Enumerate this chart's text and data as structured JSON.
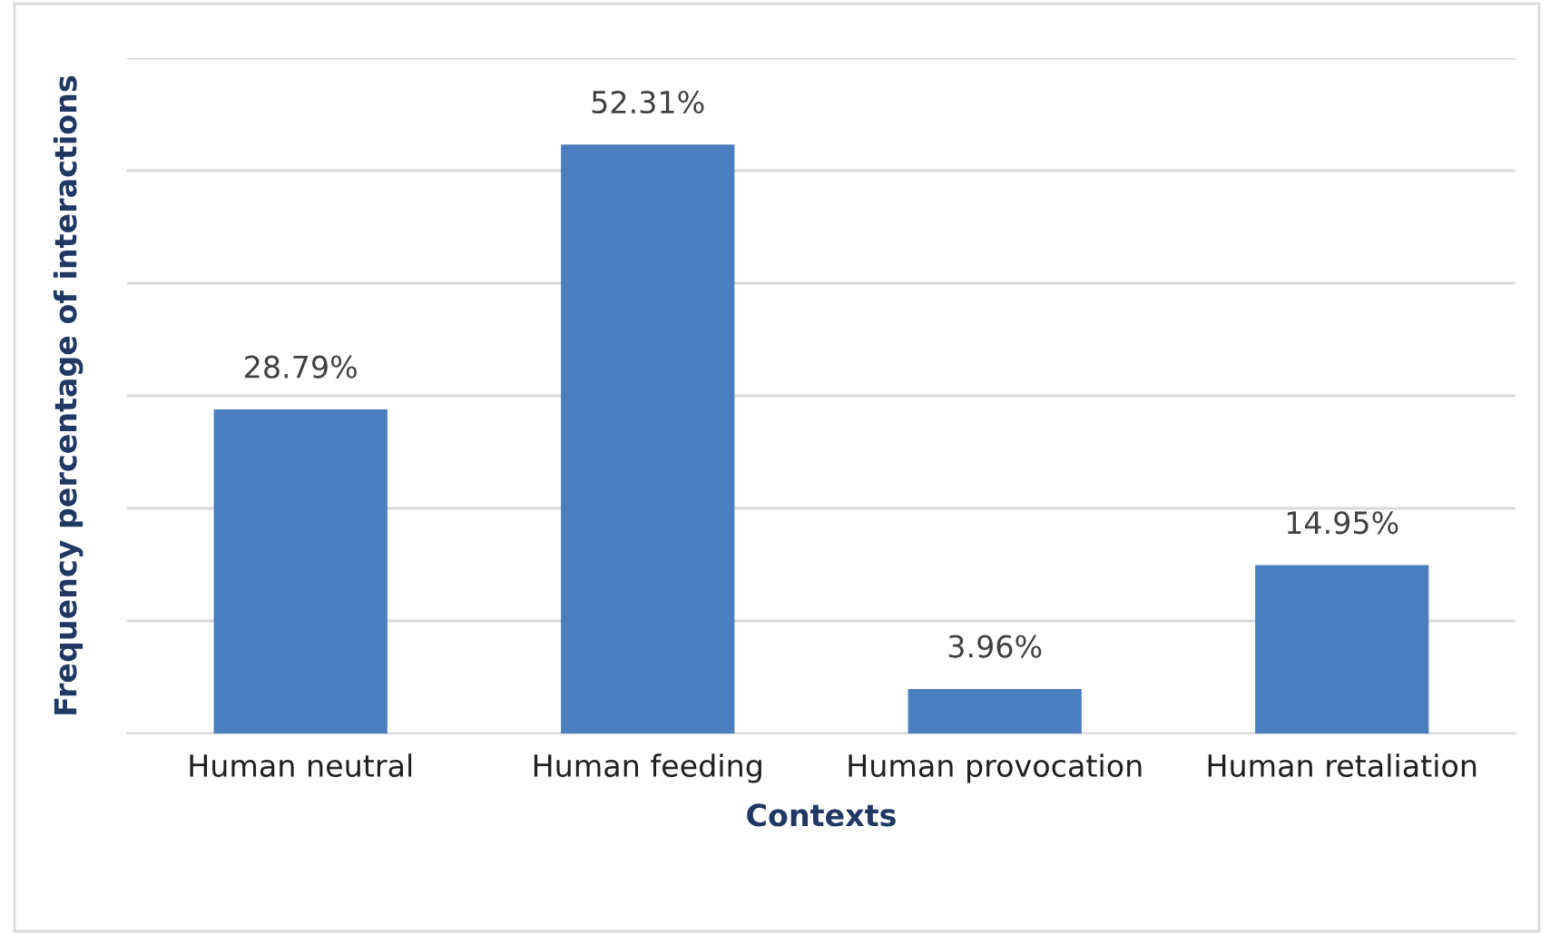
{
  "chart_data": {
    "type": "bar",
    "xlabel": "Contexts",
    "ylabel": "Frequency percentage of interactions",
    "categories": [
      "Human neutral",
      "Human feeding",
      "Human provocation",
      "Human retaliation"
    ],
    "values": [
      28.79,
      52.31,
      3.96,
      14.95
    ],
    "value_labels": [
      "28.79%",
      "52.31%",
      "3.96%",
      "14.95%"
    ],
    "color": "#4a7ebf",
    "ylim": [
      0,
      60
    ],
    "yticks": [
      {
        "value": 0,
        "label": null
      },
      {
        "value": 10,
        "label": null
      },
      {
        "value": 20,
        "label": null
      },
      {
        "value": 30,
        "label": null
      },
      {
        "value": 40,
        "label": null
      },
      {
        "value": 50,
        "label": null
      },
      {
        "value": 60,
        "label": null
      }
    ],
    "grid": "y"
  }
}
